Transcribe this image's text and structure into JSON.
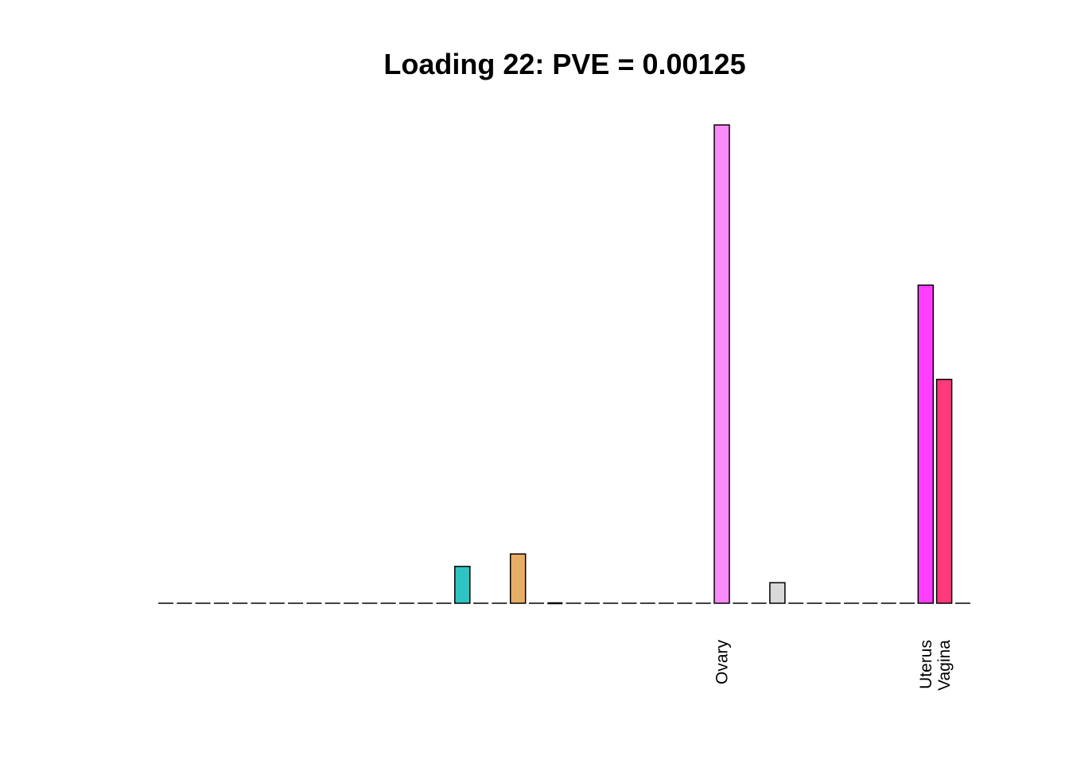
{
  "chart_data": {
    "type": "bar",
    "title": "Loading 22: PVE = 0.00125",
    "xlabel": "",
    "ylabel": "",
    "ylim": [
      0,
      1
    ],
    "grid": false,
    "legend": "none",
    "baseline": 0,
    "bar_count": 44,
    "categories_labeled": [
      "Ovary",
      "Uterus",
      "Vagina"
    ],
    "bars": [
      {
        "index": 16,
        "label": "",
        "value": 0.077,
        "color": "#2EC4C4"
      },
      {
        "index": 19,
        "label": "",
        "value": 0.103,
        "color": "#E8AD65"
      },
      {
        "index": 21,
        "label": "",
        "value": 0.003,
        "color": "#000000"
      },
      {
        "index": 30,
        "label": "Ovary",
        "value": 1.0,
        "color": "#F98CF9"
      },
      {
        "index": 33,
        "label": "",
        "value": 0.043,
        "color": "#D9D9D9"
      },
      {
        "index": 41,
        "label": "Uterus",
        "value": 0.665,
        "color": "#FF3DFF"
      },
      {
        "index": 42,
        "label": "Vagina",
        "value": 0.468,
        "color": "#FF3A7B"
      }
    ]
  }
}
